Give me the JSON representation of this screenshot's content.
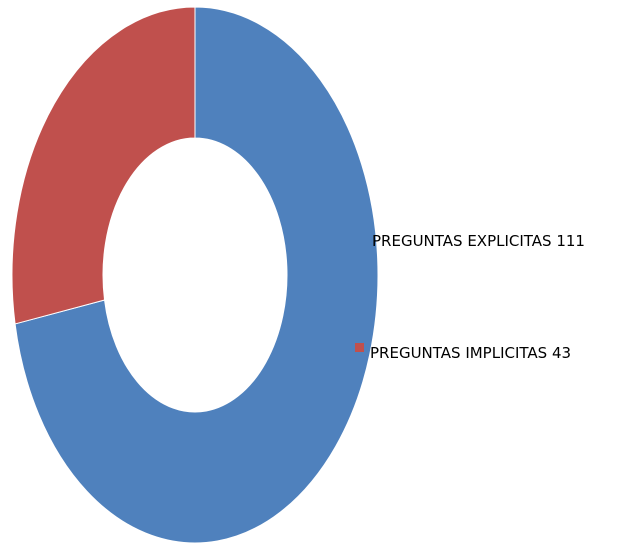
{
  "chart_data": {
    "type": "pie",
    "variant": "doughnut",
    "categories": [
      "PREGUNTAS EXPLICITAS",
      "PREGUNTAS IMPLICITAS"
    ],
    "values": [
      111,
      43
    ],
    "legend_labels": [
      "PREGUNTAS EXPLICITAS 111",
      "PREGUNTAS IMPLICITAS  43"
    ],
    "colors": [
      "#4F81BD",
      "#C0504D"
    ],
    "legend_position": "right"
  }
}
